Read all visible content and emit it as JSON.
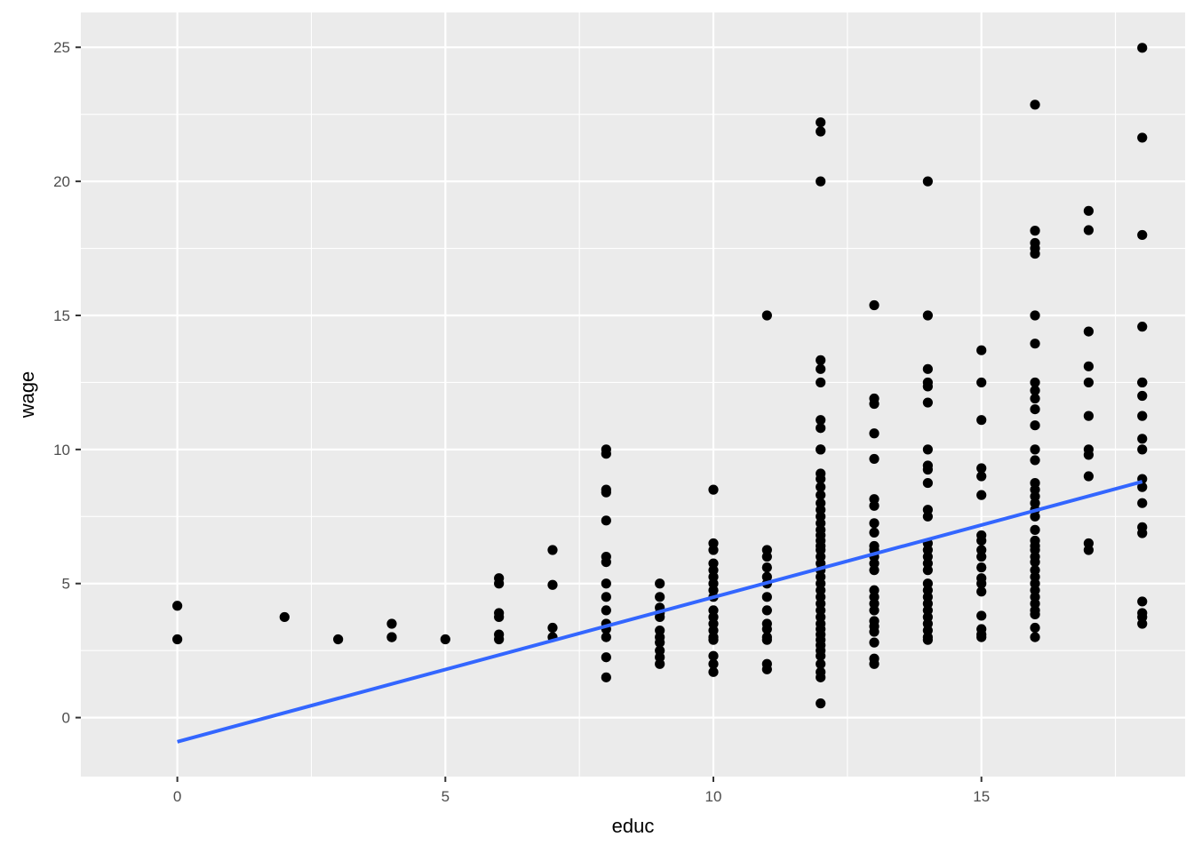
{
  "chart_data": {
    "type": "scatter",
    "title": "",
    "xlabel": "educ",
    "ylabel": "wage",
    "xlim": [
      -1.8,
      18.8
    ],
    "ylim": [
      -2.2,
      26.3
    ],
    "x_ticks": [
      0,
      5,
      10,
      15
    ],
    "y_ticks": [
      0,
      5,
      10,
      15,
      20,
      25
    ],
    "x_minor_ticks": [
      2.5,
      7.5,
      12.5,
      17.5
    ],
    "y_minor_ticks": [
      2.5,
      7.5,
      12.5,
      17.5,
      22.5
    ],
    "grid": true,
    "legend": "none",
    "colors": {
      "panel_background": "#ebebeb",
      "grid": "#ffffff",
      "points": "#000000",
      "fit_line": "#3366ff"
    },
    "series": [
      {
        "type": "scatter",
        "points": [
          [
            0,
            4.17
          ],
          [
            0,
            2.92
          ],
          [
            2,
            3.75
          ],
          [
            3,
            2.92
          ],
          [
            4,
            3.5
          ],
          [
            4,
            3.0
          ],
          [
            4,
            3.0
          ],
          [
            5,
            2.92
          ],
          [
            6,
            5.2
          ],
          [
            6,
            5.0
          ],
          [
            6,
            3.9
          ],
          [
            6,
            3.75
          ],
          [
            6,
            3.1
          ],
          [
            6,
            2.92
          ],
          [
            7,
            6.25
          ],
          [
            7,
            4.95
          ],
          [
            7,
            3.35
          ],
          [
            7,
            3.0
          ],
          [
            8,
            10.0
          ],
          [
            8,
            9.84
          ],
          [
            8,
            8.5
          ],
          [
            8,
            8.4
          ],
          [
            8,
            7.35
          ],
          [
            8,
            6.0
          ],
          [
            8,
            5.8
          ],
          [
            8,
            5.0
          ],
          [
            8,
            4.5
          ],
          [
            8,
            4.0
          ],
          [
            8,
            3.5
          ],
          [
            8,
            3.3
          ],
          [
            8,
            3.0
          ],
          [
            8,
            2.25
          ],
          [
            8,
            1.5
          ],
          [
            9,
            5.0
          ],
          [
            9,
            4.5
          ],
          [
            9,
            4.1
          ],
          [
            9,
            3.9
          ],
          [
            9,
            3.75
          ],
          [
            9,
            3.25
          ],
          [
            9,
            3.0
          ],
          [
            9,
            2.8
          ],
          [
            9,
            2.5
          ],
          [
            9,
            2.25
          ],
          [
            9,
            2.0
          ],
          [
            10,
            8.5
          ],
          [
            10,
            6.5
          ],
          [
            10,
            6.25
          ],
          [
            10,
            5.75
          ],
          [
            10,
            5.5
          ],
          [
            10,
            5.25
          ],
          [
            10,
            5.0
          ],
          [
            10,
            4.75
          ],
          [
            10,
            4.5
          ],
          [
            10,
            4.0
          ],
          [
            10,
            3.75
          ],
          [
            10,
            3.5
          ],
          [
            10,
            3.25
          ],
          [
            10,
            3.0
          ],
          [
            10,
            2.9
          ],
          [
            10,
            2.3
          ],
          [
            10,
            2.0
          ],
          [
            10,
            1.7
          ],
          [
            11,
            15.0
          ],
          [
            11,
            6.25
          ],
          [
            11,
            6.0
          ],
          [
            11,
            5.6
          ],
          [
            11,
            5.25
          ],
          [
            11,
            5.0
          ],
          [
            11,
            4.5
          ],
          [
            11,
            4.0
          ],
          [
            11,
            3.5
          ],
          [
            11,
            3.3
          ],
          [
            11,
            3.0
          ],
          [
            11,
            2.9
          ],
          [
            11,
            2.0
          ],
          [
            11,
            1.8
          ],
          [
            12,
            22.2
          ],
          [
            12,
            21.86
          ],
          [
            12,
            20.0
          ],
          [
            12,
            13.33
          ],
          [
            12,
            13.0
          ],
          [
            12,
            12.5
          ],
          [
            12,
            11.1
          ],
          [
            12,
            10.8
          ],
          [
            12,
            10.0
          ],
          [
            12,
            10.0
          ],
          [
            12,
            9.1
          ],
          [
            12,
            8.9
          ],
          [
            12,
            8.6
          ],
          [
            12,
            8.3
          ],
          [
            12,
            8.0
          ],
          [
            12,
            7.75
          ],
          [
            12,
            7.5
          ],
          [
            12,
            7.25
          ],
          [
            12,
            7.0
          ],
          [
            12,
            6.8
          ],
          [
            12,
            6.6
          ],
          [
            12,
            6.4
          ],
          [
            12,
            6.25
          ],
          [
            12,
            6.0
          ],
          [
            12,
            5.75
          ],
          [
            12,
            5.5
          ],
          [
            12,
            5.25
          ],
          [
            12,
            5.0
          ],
          [
            12,
            4.75
          ],
          [
            12,
            4.5
          ],
          [
            12,
            4.25
          ],
          [
            12,
            4.0
          ],
          [
            12,
            3.75
          ],
          [
            12,
            3.5
          ],
          [
            12,
            3.3
          ],
          [
            12,
            3.1
          ],
          [
            12,
            2.9
          ],
          [
            12,
            2.7
          ],
          [
            12,
            2.5
          ],
          [
            12,
            2.3
          ],
          [
            12,
            2.0
          ],
          [
            12,
            1.7
          ],
          [
            12,
            1.5
          ],
          [
            12,
            0.53
          ],
          [
            13,
            15.38
          ],
          [
            13,
            11.9
          ],
          [
            13,
            11.7
          ],
          [
            13,
            10.6
          ],
          [
            13,
            9.65
          ],
          [
            13,
            8.15
          ],
          [
            13,
            7.9
          ],
          [
            13,
            7.25
          ],
          [
            13,
            6.9
          ],
          [
            13,
            6.4
          ],
          [
            13,
            6.25
          ],
          [
            13,
            6.0
          ],
          [
            13,
            5.75
          ],
          [
            13,
            5.5
          ],
          [
            13,
            4.75
          ],
          [
            13,
            4.5
          ],
          [
            13,
            4.25
          ],
          [
            13,
            4.0
          ],
          [
            13,
            3.6
          ],
          [
            13,
            3.4
          ],
          [
            13,
            3.2
          ],
          [
            13,
            2.8
          ],
          [
            13,
            2.2
          ],
          [
            13,
            2.0
          ],
          [
            14,
            20.0
          ],
          [
            14,
            15.0
          ],
          [
            14,
            13.0
          ],
          [
            14,
            12.5
          ],
          [
            14,
            12.35
          ],
          [
            14,
            11.75
          ],
          [
            14,
            10.0
          ],
          [
            14,
            9.4
          ],
          [
            14,
            9.25
          ],
          [
            14,
            8.75
          ],
          [
            14,
            7.75
          ],
          [
            14,
            7.5
          ],
          [
            14,
            6.5
          ],
          [
            14,
            6.25
          ],
          [
            14,
            6.0
          ],
          [
            14,
            5.75
          ],
          [
            14,
            5.5
          ],
          [
            14,
            5.0
          ],
          [
            14,
            4.75
          ],
          [
            14,
            4.5
          ],
          [
            14,
            4.25
          ],
          [
            14,
            4.0
          ],
          [
            14,
            3.75
          ],
          [
            14,
            3.5
          ],
          [
            14,
            3.25
          ],
          [
            14,
            3.0
          ],
          [
            14,
            2.9
          ],
          [
            15,
            13.7
          ],
          [
            15,
            12.5
          ],
          [
            15,
            11.1
          ],
          [
            15,
            9.3
          ],
          [
            15,
            9.0
          ],
          [
            15,
            8.3
          ],
          [
            15,
            6.8
          ],
          [
            15,
            6.6
          ],
          [
            15,
            6.25
          ],
          [
            15,
            6.0
          ],
          [
            15,
            5.6
          ],
          [
            15,
            5.2
          ],
          [
            15,
            5.0
          ],
          [
            15,
            4.7
          ],
          [
            15,
            3.8
          ],
          [
            15,
            3.3
          ],
          [
            15,
            3.1
          ],
          [
            15,
            3.0
          ],
          [
            16,
            22.86
          ],
          [
            16,
            18.16
          ],
          [
            16,
            17.7
          ],
          [
            16,
            17.5
          ],
          [
            16,
            17.3
          ],
          [
            16,
            15.0
          ],
          [
            16,
            13.95
          ],
          [
            16,
            12.5
          ],
          [
            16,
            12.2
          ],
          [
            16,
            11.9
          ],
          [
            16,
            11.5
          ],
          [
            16,
            10.9
          ],
          [
            16,
            10.0
          ],
          [
            16,
            9.6
          ],
          [
            16,
            8.75
          ],
          [
            16,
            8.5
          ],
          [
            16,
            8.25
          ],
          [
            16,
            8.0
          ],
          [
            16,
            7.75
          ],
          [
            16,
            7.5
          ],
          [
            16,
            7.0
          ],
          [
            16,
            6.6
          ],
          [
            16,
            6.4
          ],
          [
            16,
            6.25
          ],
          [
            16,
            6.0
          ],
          [
            16,
            5.8
          ],
          [
            16,
            5.5
          ],
          [
            16,
            5.25
          ],
          [
            16,
            5.0
          ],
          [
            16,
            4.75
          ],
          [
            16,
            4.5
          ],
          [
            16,
            4.25
          ],
          [
            16,
            4.0
          ],
          [
            16,
            3.85
          ],
          [
            16,
            3.35
          ],
          [
            16,
            3.0
          ],
          [
            17,
            18.9
          ],
          [
            17,
            18.18
          ],
          [
            17,
            14.4
          ],
          [
            17,
            13.1
          ],
          [
            17,
            12.5
          ],
          [
            17,
            11.25
          ],
          [
            17,
            10.0
          ],
          [
            17,
            9.8
          ],
          [
            17,
            9.0
          ],
          [
            17,
            6.5
          ],
          [
            17,
            6.25
          ],
          [
            18,
            24.98
          ],
          [
            18,
            21.63
          ],
          [
            18,
            18.0
          ],
          [
            18,
            14.58
          ],
          [
            18,
            12.5
          ],
          [
            18,
            12.5
          ],
          [
            18,
            12.0
          ],
          [
            18,
            11.25
          ],
          [
            18,
            10.4
          ],
          [
            18,
            10.0
          ],
          [
            18,
            8.9
          ],
          [
            18,
            8.6
          ],
          [
            18,
            8.0
          ],
          [
            18,
            7.1
          ],
          [
            18,
            6.88
          ],
          [
            18,
            4.33
          ],
          [
            18,
            3.9
          ],
          [
            18,
            3.75
          ],
          [
            18,
            3.5
          ]
        ]
      },
      {
        "type": "line",
        "method": "lm",
        "points": [
          [
            0,
            -0.9
          ],
          [
            18,
            8.8
          ]
        ]
      }
    ]
  }
}
